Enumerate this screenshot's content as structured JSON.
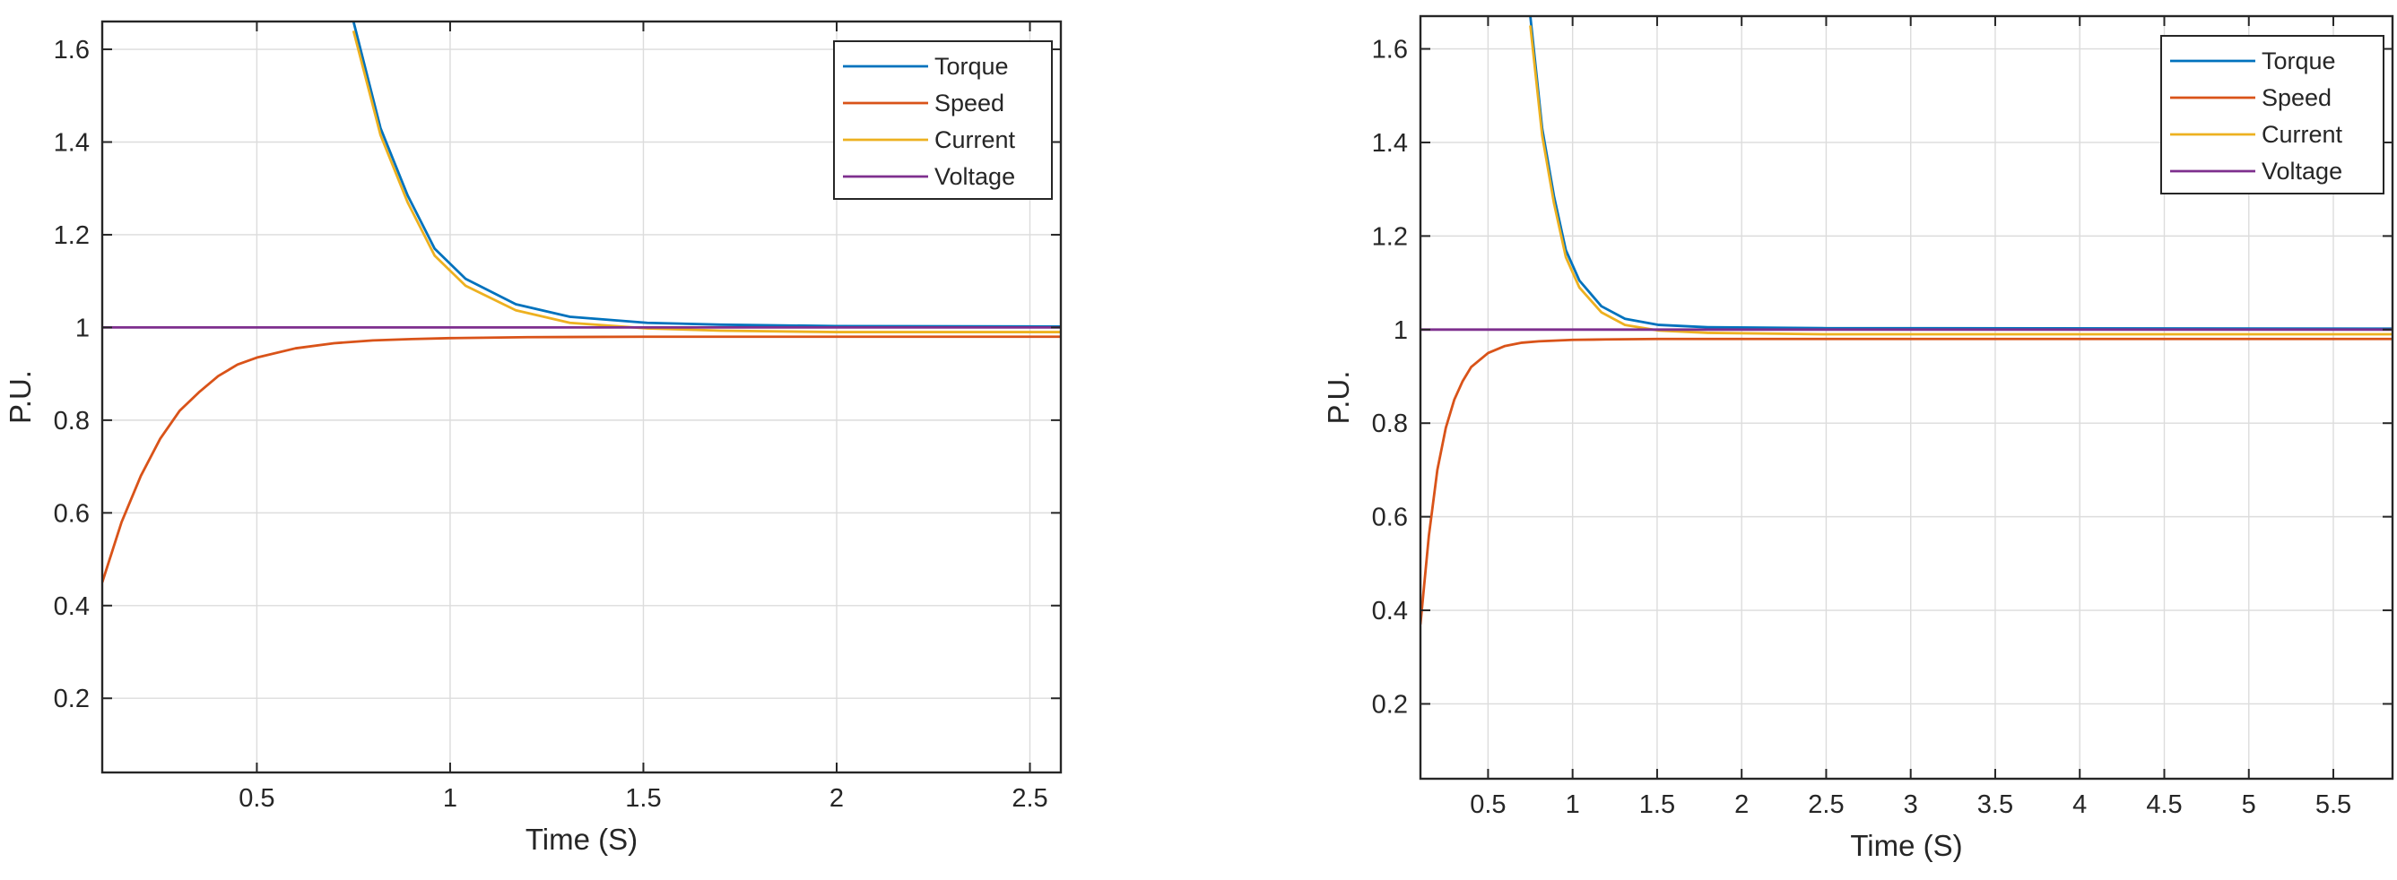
{
  "chart_data": [
    {
      "type": "line",
      "title": "",
      "xlabel": "Time (S)",
      "ylabel": "P.U.",
      "xlim": [
        0.1,
        2.58
      ],
      "ylim": [
        0.04,
        1.66
      ],
      "xticks": [
        0.5,
        1,
        1.5,
        2,
        2.5
      ],
      "xtick_labels": [
        "0.5",
        "1",
        "1.5",
        "2",
        "2.5"
      ],
      "yticks": [
        0.2,
        0.4,
        0.6,
        0.8,
        1.0,
        1.2,
        1.4,
        1.6
      ],
      "ytick_labels": [
        "0.2",
        "0.4",
        "0.6",
        "0.8",
        "1",
        "1.2",
        "1.4",
        "1.6"
      ],
      "grid": true,
      "legend_position": "top-right",
      "series": [
        {
          "name": "Torque",
          "color": "#0072BD",
          "x": [
            0.75,
            0.82,
            0.89,
            0.96,
            1.04,
            1.17,
            1.31,
            1.51,
            1.7,
            2.0,
            2.58
          ],
          "y": [
            1.66,
            1.43,
            1.285,
            1.17,
            1.105,
            1.05,
            1.023,
            1.01,
            1.006,
            1.003,
            1.002
          ]
        },
        {
          "name": "Speed",
          "color": "#D95319",
          "x": [
            0.1,
            0.15,
            0.2,
            0.25,
            0.3,
            0.35,
            0.4,
            0.45,
            0.5,
            0.6,
            0.7,
            0.8,
            0.9,
            1.0,
            1.2,
            1.5,
            2.0,
            2.58
          ],
          "y": [
            0.45,
            0.58,
            0.68,
            0.76,
            0.82,
            0.86,
            0.895,
            0.92,
            0.935,
            0.955,
            0.966,
            0.972,
            0.975,
            0.977,
            0.979,
            0.98,
            0.98,
            0.98
          ]
        },
        {
          "name": "Current",
          "color": "#EDB120",
          "x": [
            0.75,
            0.82,
            0.89,
            0.96,
            1.04,
            1.17,
            1.31,
            1.51,
            1.7,
            2.0,
            2.58
          ],
          "y": [
            1.64,
            1.415,
            1.27,
            1.155,
            1.09,
            1.037,
            1.01,
            0.998,
            0.993,
            0.99,
            0.99
          ]
        },
        {
          "name": "Voltage",
          "color": "#7E2F8E",
          "x": [
            0.1,
            2.58
          ],
          "y": [
            1.0,
            1.0
          ]
        }
      ]
    },
    {
      "type": "line",
      "title": "",
      "xlabel": "Time (S)",
      "ylabel": "P.U.",
      "xlim": [
        0.1,
        5.85
      ],
      "ylim": [
        0.04,
        1.67
      ],
      "xticks": [
        0.5,
        1,
        1.5,
        2,
        2.5,
        3,
        3.5,
        4,
        4.5,
        5,
        5.5
      ],
      "xtick_labels": [
        "0.5",
        "1",
        "1.5",
        "2",
        "2.5",
        "3",
        "3.5",
        "4",
        "4.5",
        "5",
        "5.5"
      ],
      "yticks": [
        0.2,
        0.4,
        0.6,
        0.8,
        1.0,
        1.2,
        1.4,
        1.6
      ],
      "ytick_labels": [
        "0.2",
        "0.4",
        "0.6",
        "0.8",
        "1",
        "1.2",
        "1.4",
        "1.6"
      ],
      "grid": true,
      "legend_position": "top-right",
      "series": [
        {
          "name": "Torque",
          "color": "#0072BD",
          "x": [
            0.75,
            0.82,
            0.89,
            0.96,
            1.04,
            1.17,
            1.31,
            1.51,
            1.8,
            2.5,
            5.85
          ],
          "y": [
            1.67,
            1.43,
            1.285,
            1.17,
            1.105,
            1.05,
            1.023,
            1.01,
            1.005,
            1.003,
            1.002
          ]
        },
        {
          "name": "Speed",
          "color": "#D95319",
          "x": [
            0.1,
            0.15,
            0.2,
            0.25,
            0.3,
            0.35,
            0.4,
            0.5,
            0.6,
            0.7,
            0.8,
            1.0,
            1.2,
            1.5,
            2.0,
            3.0,
            5.85
          ],
          "y": [
            0.37,
            0.56,
            0.7,
            0.79,
            0.85,
            0.89,
            0.92,
            0.95,
            0.965,
            0.972,
            0.975,
            0.978,
            0.979,
            0.98,
            0.98,
            0.98,
            0.98
          ]
        },
        {
          "name": "Current",
          "color": "#EDB120",
          "x": [
            0.75,
            0.82,
            0.89,
            0.96,
            1.04,
            1.17,
            1.31,
            1.51,
            1.8,
            2.5,
            5.85
          ],
          "y": [
            1.65,
            1.415,
            1.27,
            1.155,
            1.09,
            1.037,
            1.01,
            0.998,
            0.993,
            0.99,
            0.99
          ]
        },
        {
          "name": "Voltage",
          "color": "#7E2F8E",
          "x": [
            0.1,
            5.85
          ],
          "y": [
            1.0,
            1.0
          ]
        }
      ]
    }
  ]
}
